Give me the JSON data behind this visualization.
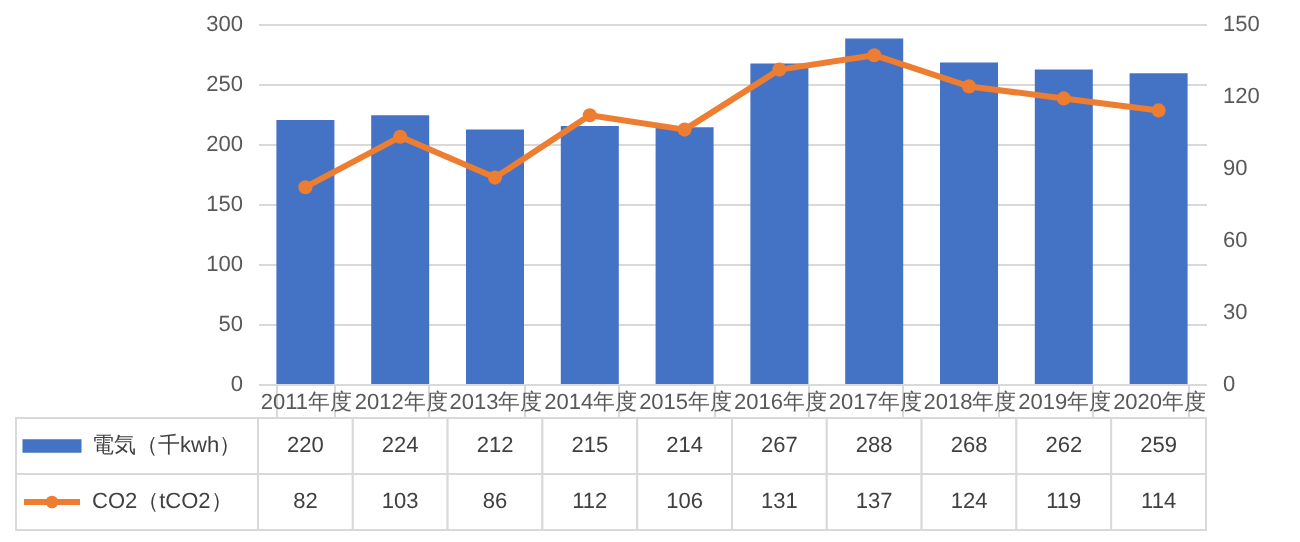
{
  "chart_data": {
    "type": "bar",
    "categories": [
      "2011年度",
      "2012年度",
      "2013年度",
      "2014年度",
      "2015年度",
      "2016年度",
      "2017年度",
      "2018年度",
      "2019年度",
      "2020年度"
    ],
    "series": [
      {
        "name": "電気（千kwh）",
        "color": "#4472c4",
        "values": [
          220,
          224,
          212,
          215,
          214,
          267,
          288,
          268,
          262,
          259
        ]
      },
      {
        "name": "CO2（tCO2）",
        "type": "line",
        "axis": "y2",
        "color": "#ed7d31",
        "marker": "circle",
        "values": [
          82,
          103,
          86,
          112,
          106,
          131,
          137,
          124,
          119,
          114
        ]
      }
    ],
    "ylim": [
      0,
      300
    ],
    "yticks": [
      0,
      50,
      100,
      150,
      200,
      250,
      300
    ],
    "y2lim": [
      0,
      150
    ],
    "y2ticks": [
      0,
      30,
      60,
      90,
      120,
      150
    ],
    "grid": "y",
    "data_labels": true,
    "legend": "bottom left"
  }
}
